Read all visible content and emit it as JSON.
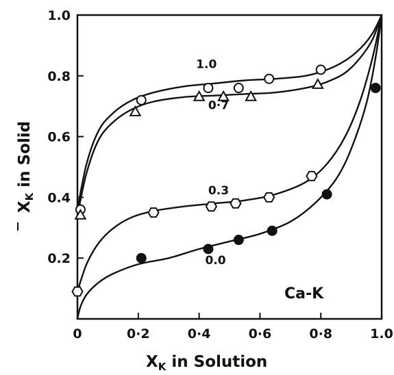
{
  "chart_data": {
    "type": "scatter",
    "xlabel": "X",
    "xlabel_sub": "K",
    "xlabel_rest": " in Solution",
    "ylabel": "X",
    "ylabel_sub": "K",
    "ylabel_rest": " in Solid",
    "xlim": [
      0,
      1.0
    ],
    "ylim": [
      0,
      1.0
    ],
    "x_ticks": [
      {
        "value": 0,
        "label": "0"
      },
      {
        "value": 0.2,
        "label": "0·2"
      },
      {
        "value": 0.4,
        "label": "0·4"
      },
      {
        "value": 0.6,
        "label": "0·6"
      },
      {
        "value": 0.8,
        "label": "0·8"
      },
      {
        "value": 1.0,
        "label": "1.0"
      }
    ],
    "y_ticks": [
      {
        "value": 0.2,
        "label": "0.2"
      },
      {
        "value": 0.4,
        "label": "0.4"
      },
      {
        "value": 0.6,
        "label": "0.6"
      },
      {
        "value": 0.8,
        "label": "0.8"
      },
      {
        "value": 1.0,
        "label": "1.0"
      }
    ],
    "grid": false,
    "system_label": "Ca-K",
    "series": [
      {
        "name": "1.0",
        "marker": "circle",
        "x": [
          0.01,
          0.21,
          0.43,
          0.53,
          0.63,
          0.8
        ],
        "y": [
          0.36,
          0.72,
          0.76,
          0.76,
          0.79,
          0.82
        ],
        "curve_x": [
          0,
          0.03,
          0.07,
          0.12,
          0.18,
          0.25,
          0.35,
          0.45,
          0.55,
          0.65,
          0.75,
          0.82,
          0.88,
          0.93,
          0.97,
          1.0
        ],
        "curve_y": [
          0.36,
          0.51,
          0.62,
          0.68,
          0.72,
          0.745,
          0.765,
          0.775,
          0.785,
          0.79,
          0.8,
          0.82,
          0.85,
          0.89,
          0.94,
          1.0
        ]
      },
      {
        "name": "0·7",
        "marker": "triangle",
        "x": [
          0.01,
          0.19,
          0.4,
          0.48,
          0.57,
          0.79
        ],
        "y": [
          0.34,
          0.68,
          0.73,
          0.73,
          0.73,
          0.77
        ],
        "curve_x": [
          0,
          0.03,
          0.07,
          0.12,
          0.18,
          0.25,
          0.35,
          0.45,
          0.55,
          0.65,
          0.75,
          0.82,
          0.88,
          0.93,
          0.97,
          1.0
        ],
        "curve_y": [
          0.34,
          0.48,
          0.59,
          0.65,
          0.69,
          0.715,
          0.73,
          0.735,
          0.74,
          0.745,
          0.76,
          0.78,
          0.81,
          0.86,
          0.92,
          1.0
        ]
      },
      {
        "name": "0.3",
        "marker": "hexagon",
        "x": [
          0.0,
          0.25,
          0.44,
          0.52,
          0.63,
          0.77
        ],
        "y": [
          0.09,
          0.35,
          0.37,
          0.38,
          0.4,
          0.47
        ],
        "curve_x": [
          0,
          0.03,
          0.07,
          0.12,
          0.18,
          0.25,
          0.35,
          0.45,
          0.55,
          0.65,
          0.75,
          0.82,
          0.88,
          0.93,
          0.97,
          1.0
        ],
        "curve_y": [
          0.09,
          0.18,
          0.25,
          0.3,
          0.335,
          0.355,
          0.37,
          0.38,
          0.39,
          0.41,
          0.45,
          0.51,
          0.6,
          0.72,
          0.86,
          1.0
        ]
      },
      {
        "name": "0.0",
        "marker": "filled-circle",
        "x": [
          0.21,
          0.43,
          0.53,
          0.64,
          0.82,
          0.98
        ],
        "y": [
          0.2,
          0.23,
          0.26,
          0.29,
          0.41,
          0.76
        ],
        "curve_x": [
          0,
          0.01,
          0.03,
          0.07,
          0.12,
          0.2,
          0.3,
          0.4,
          0.5,
          0.6,
          0.7,
          0.78,
          0.85,
          0.9,
          0.95,
          0.98,
          1.0
        ],
        "curve_y": [
          0.0,
          0.04,
          0.08,
          0.12,
          0.15,
          0.18,
          0.2,
          0.23,
          0.255,
          0.28,
          0.32,
          0.38,
          0.46,
          0.56,
          0.71,
          0.86,
          1.0
        ]
      }
    ]
  }
}
